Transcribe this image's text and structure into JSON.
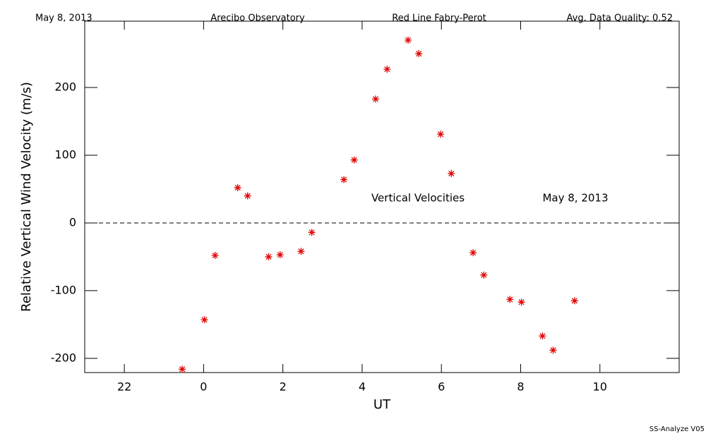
{
  "chart_data": {
    "type": "scatter",
    "header": [
      "May 8, 2013",
      "Arecibo Observatory",
      "Red Line Fabry-Perot",
      "Avg. Data Quality: 0.52"
    ],
    "xlabel": "UT",
    "ylabel": "Relative Vertical Wind Velocity (m/s)",
    "annotations": [
      "Vertical Velocities",
      "May 8, 2013"
    ],
    "footer": "SS-Analyze V05",
    "xlim": [
      -3,
      12
    ],
    "xticks": [
      {
        "value": -2,
        "label": "22"
      },
      0,
      2,
      4,
      6,
      8,
      10
    ],
    "ylim": [
      -221,
      298
    ],
    "yticks": [
      -200,
      -100,
      0,
      100,
      200
    ],
    "reference_line": 0,
    "series": [
      {
        "color": "#e00000",
        "x": [
          -0.54,
          0.02,
          0.29,
          0.86,
          1.11,
          1.64,
          1.93,
          2.46,
          2.73,
          3.54,
          3.8,
          4.34,
          4.63,
          5.16,
          5.43,
          5.98,
          6.25,
          6.8,
          7.07,
          7.73,
          8.02,
          8.55,
          8.82,
          9.36
        ],
        "values": [
          -216,
          -143,
          -48,
          52,
          40,
          -50,
          -47,
          -42,
          -14,
          64,
          93,
          183,
          227,
          270,
          250,
          131,
          73,
          -44,
          -77,
          -113,
          -117,
          -167,
          -188,
          -115
        ]
      }
    ]
  }
}
